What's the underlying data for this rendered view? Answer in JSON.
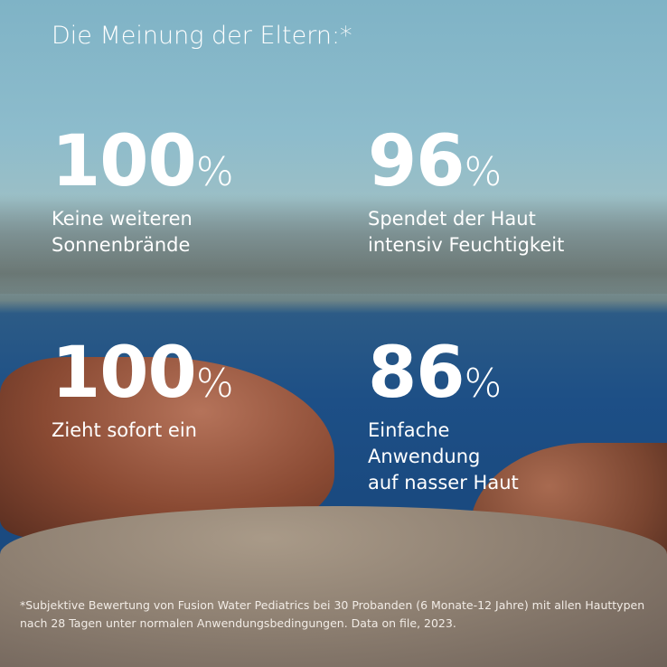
{
  "title": "Die Meinung der Eltern:*",
  "stats": [
    {
      "value": "100",
      "unit": "%",
      "label": "Keine weiteren\nSonnenbrände"
    },
    {
      "value": "96",
      "unit": "%",
      "label": "Spendet der Haut\nintensiv Feuchtigkeit"
    },
    {
      "value": "100",
      "unit": "%",
      "label": "Zieht sofort ein"
    },
    {
      "value": "86",
      "unit": "%",
      "label": "Einfache\nAnwendung\nauf nasser Haut"
    }
  ],
  "footnote": "*Subjektive Bewertung von Fusion Water Pediatrics bei 30 Probanden (6 Monate-12 Jahre) mit allen Hauttypen nach 28 Tagen unter normalen Anwendungsbedingungen. Data on file, 2023."
}
